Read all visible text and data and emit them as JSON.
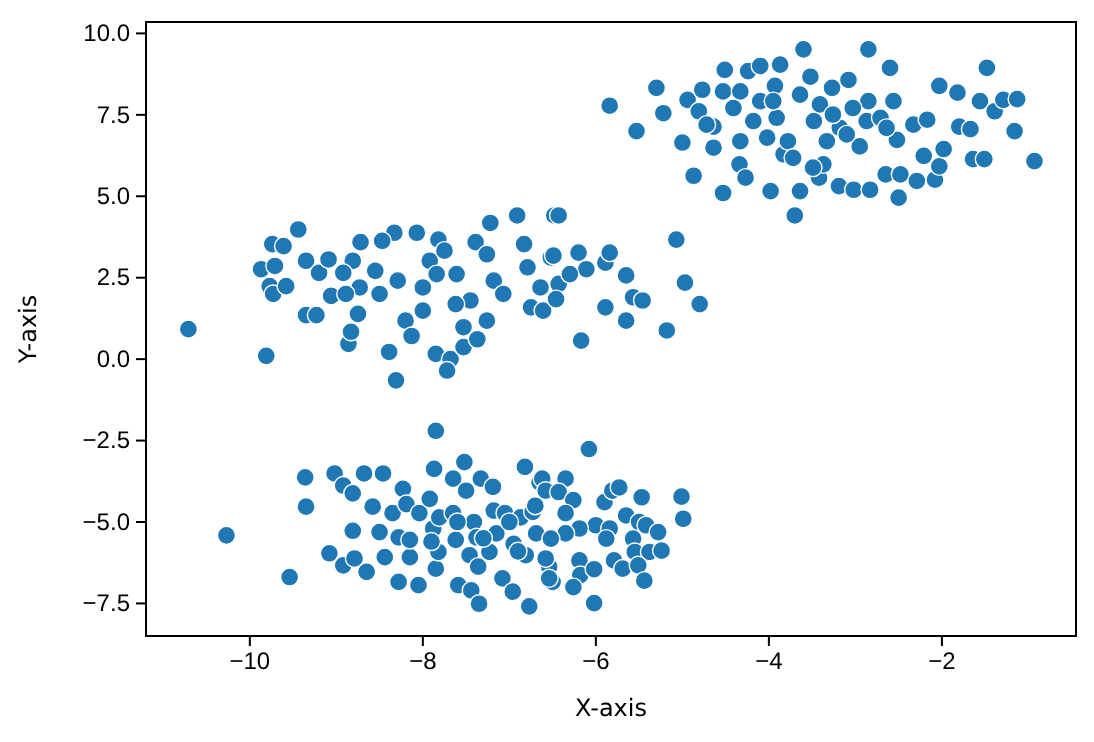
{
  "chart_data": {
    "type": "scatter",
    "xlabel": "X-axis",
    "ylabel": "Y-axis",
    "marker": "circle",
    "grid": false,
    "xlim": [
      -11.2,
      -0.45
    ],
    "ylim": [
      -8.5,
      10.35
    ],
    "xticks": [
      {
        "value": -10,
        "label": "−10"
      },
      {
        "value": -8,
        "label": "−8"
      },
      {
        "value": -6,
        "label": "−6"
      },
      {
        "value": -4,
        "label": "−4"
      },
      {
        "value": -2,
        "label": "−2"
      }
    ],
    "yticks": [
      {
        "value": -7.5,
        "label": "−7.5"
      },
      {
        "value": -5,
        "label": "−5.0"
      },
      {
        "value": -2.5,
        "label": "−2.5"
      },
      {
        "value": 0,
        "label": "0.0"
      },
      {
        "value": 2.5,
        "label": "2.5"
      },
      {
        "value": 5,
        "label": "5.0"
      },
      {
        "value": 7.5,
        "label": "7.5"
      },
      {
        "value": 10,
        "label": "10.0"
      }
    ],
    "series": [
      {
        "color": "#1f77b4",
        "x": [
          -10.71,
          -9.81,
          -9.87,
          -9.74,
          -9.61,
          -9.71,
          -9.77,
          -9.73,
          -9.58,
          -9.44,
          -9.35,
          -9.35,
          -9.23,
          -9.2,
          -9.09,
          -9.06,
          -8.86,
          -8.83,
          -8.72,
          -8.81,
          -8.92,
          -8.73,
          -8.75,
          -8.55,
          -8.39,
          -8.31,
          -8.33,
          -8.07,
          -8.47,
          -8.29,
          -8.2,
          -8.13,
          -7.85,
          -7.68,
          -7.72,
          -7.53,
          -7.37,
          -7.82,
          -7.92,
          -8.0,
          -8.0,
          -7.75,
          -7.61,
          -7.53,
          -7.45,
          -7.39,
          -7.22,
          -7.26,
          -7.18,
          -7.07,
          -7.26,
          -6.91,
          -6.83,
          -6.79,
          -6.64,
          -6.75,
          -6.48,
          -6.52,
          -7.62,
          -7.84,
          -8.5,
          -8.89,
          -6.43,
          -6.49,
          -6.2,
          -6.11,
          -5.89,
          -5.84,
          -5.65,
          -5.57,
          -5.46,
          -5.89,
          -5.65,
          -5.07,
          -4.97,
          -4.8,
          -5.18,
          -6.17,
          -6.43,
          -6.3,
          -6.61,
          -6.46,
          -5.84,
          -5.53,
          -5.3,
          -5.22,
          -4.94,
          -5.0,
          -4.87,
          -4.77,
          -4.81,
          -4.64,
          -4.53,
          -4.51,
          -4.53,
          -4.34,
          -4.27,
          -4.24,
          -4.1,
          -4.02,
          -3.98,
          -3.93,
          -3.87,
          -3.83,
          -3.78,
          -3.7,
          -3.64,
          -3.6,
          -3.52,
          -3.48,
          -3.42,
          -3.37,
          -3.27,
          -3.19,
          -3.18,
          -3.08,
          -3.02,
          -2.95,
          -2.85,
          -2.85,
          -2.83,
          -2.65,
          -2.6,
          -2.56,
          -2.52,
          -2.5,
          -2.48,
          -2.33,
          -2.29,
          -2.21,
          -2.17,
          -2.08,
          -2.03,
          -2.03,
          -1.98,
          -1.82,
          -1.8,
          -1.67,
          -1.64,
          -1.56,
          -1.51,
          -1.48,
          -1.39,
          -1.29,
          -1.16,
          -1.13,
          -0.93,
          -4.72,
          -4.41,
          -4.18,
          -4.1,
          -3.91,
          -4.33,
          -3.41,
          -3.26,
          -3.1,
          -2.87,
          -2.71,
          -4.33,
          -3.95,
          -3.64,
          -3.33,
          -3.03,
          -2.64,
          -4.64,
          -3.72,
          -3.49,
          -10.27,
          -9.54,
          -9.36,
          -9.35,
          -9.08,
          -9.02,
          -8.92,
          -8.92,
          -8.81,
          -8.81,
          -8.79,
          -8.68,
          -8.65,
          -8.58,
          -8.46,
          -8.5,
          -8.44,
          -8.35,
          -8.28,
          -8.28,
          -8.23,
          -8.19,
          -8.15,
          -8.15,
          -8.05,
          -8.04,
          -7.92,
          -7.88,
          -7.87,
          -7.85,
          -7.85,
          -7.82,
          -7.81,
          -7.65,
          -7.65,
          -7.62,
          -7.59,
          -7.52,
          -7.5,
          -7.46,
          -7.44,
          -7.41,
          -7.38,
          -7.35,
          -7.36,
          -7.33,
          -7.23,
          -7.19,
          -7.18,
          -7.15,
          -7.08,
          -7.05,
          -6.96,
          -6.95,
          -6.87,
          -6.82,
          -6.77,
          -6.81,
          -6.73,
          -6.69,
          -6.65,
          -6.54,
          -6.5,
          -6.08,
          -6.35,
          -6.62,
          -6.58,
          -6.43,
          -6.26,
          -5.9,
          -5.81,
          -5.73,
          -5.47,
          -5.01,
          -4.99,
          -5.65,
          -5.5,
          -5.42,
          -5.28,
          -6.0,
          -6.19,
          -6.35,
          -6.52,
          -5.84,
          -5.88,
          -5.57,
          -5.55,
          -5.38,
          -5.24,
          -5.79,
          -5.69,
          -5.51,
          -5.44,
          -6.19,
          -6.18,
          -6.02,
          -6.26,
          -6.02,
          -6.54,
          -6.58,
          -6.35,
          -7.0,
          -7.3,
          -6.9,
          -7.6,
          -7.9,
          -6.7
        ],
        "values": [
          0.92,
          0.1,
          2.76,
          3.53,
          3.47,
          2.86,
          2.24,
          2.0,
          2.24,
          3.98,
          3.02,
          1.35,
          1.35,
          2.65,
          3.06,
          1.94,
          0.47,
          0.84,
          3.59,
          3.02,
          2.65,
          2.2,
          1.39,
          2.71,
          0.22,
          -0.65,
          3.88,
          3.88,
          3.63,
          2.41,
          1.18,
          0.71,
          0.16,
          0.0,
          -0.35,
          0.37,
          0.61,
          3.67,
          3.02,
          2.2,
          1.49,
          3.33,
          2.61,
          0.98,
          1.8,
          3.59,
          4.18,
          3.22,
          2.41,
          2.0,
          1.18,
          4.41,
          3.53,
          2.82,
          2.2,
          1.59,
          4.41,
          3.12,
          1.69,
          2.61,
          2.0,
          2.0,
          4.41,
          3.18,
          3.27,
          2.76,
          2.96,
          3.27,
          2.57,
          1.9,
          1.8,
          1.59,
          1.18,
          3.67,
          2.35,
          1.69,
          0.88,
          0.57,
          2.31,
          2.61,
          1.49,
          1.84,
          7.78,
          7.0,
          8.33,
          7.55,
          7.96,
          6.65,
          5.63,
          8.27,
          7.61,
          7.14,
          5.1,
          8.88,
          8.22,
          5.98,
          5.57,
          8.84,
          9.0,
          6.8,
          5.16,
          8.39,
          9.04,
          6.29,
          6.69,
          4.41,
          5.16,
          9.51,
          8.67,
          7.31,
          5.57,
          5.98,
          8.33,
          5.31,
          7.1,
          8.57,
          5.2,
          6.53,
          9.51,
          7.92,
          5.2,
          5.67,
          8.94,
          7.92,
          6.73,
          4.96,
          5.67,
          7.2,
          5.47,
          6.24,
          7.35,
          5.51,
          8.39,
          5.92,
          6.45,
          8.18,
          7.14,
          7.06,
          6.14,
          7.92,
          6.14,
          8.94,
          7.61,
          7.96,
          7.0,
          7.98,
          6.08,
          7.2,
          7.71,
          7.31,
          7.92,
          7.41,
          6.69,
          7.82,
          7.51,
          6.9,
          7.31,
          7.41,
          8.22,
          7.92,
          8.12,
          6.69,
          7.71,
          7.1,
          6.49,
          6.18,
          5.88,
          -5.41,
          -6.69,
          -3.63,
          -4.53,
          -5.96,
          -3.51,
          -3.88,
          -6.33,
          -4.12,
          -5.27,
          -6.12,
          -3.51,
          -6.53,
          -4.53,
          -3.51,
          -5.31,
          -6.08,
          -4.73,
          -6.84,
          -5.47,
          -3.98,
          -4.45,
          -6.08,
          -5.55,
          -6.94,
          -4.73,
          -4.29,
          -5.2,
          -3.37,
          -2.2,
          -6.43,
          -5.92,
          -4.86,
          -3.67,
          -4.73,
          -5.55,
          -6.94,
          -3.16,
          -4.04,
          -6.02,
          -7.1,
          -5.0,
          -5.47,
          -7.51,
          -6.37,
          -3.67,
          -5.92,
          -3.92,
          -4.65,
          -5.35,
          -6.73,
          -4.73,
          -7.14,
          -5.67,
          -4.86,
          -3.31,
          -7.59,
          -6.02,
          -4.69,
          -5.35,
          -3.78,
          -6.37,
          -6.84,
          -2.76,
          -3.67,
          -3.67,
          -4.04,
          -4.08,
          -4.33,
          -4.39,
          -4.04,
          -3.94,
          -4.24,
          -4.22,
          -4.9,
          -4.8,
          -5.0,
          -5.1,
          -5.31,
          -5.1,
          -5.2,
          -5.35,
          -5.51,
          -5.2,
          -5.51,
          -5.51,
          -5.92,
          -5.92,
          -5.88,
          -6.18,
          -6.43,
          -6.33,
          -6.8,
          -6.18,
          -6.63,
          -6.45,
          -7.0,
          -7.49,
          -6.73,
          -6.12,
          -4.73,
          -5.0,
          -5.5,
          -5.9,
          -5.0,
          -5.6,
          -4.5
        ]
      }
    ]
  }
}
